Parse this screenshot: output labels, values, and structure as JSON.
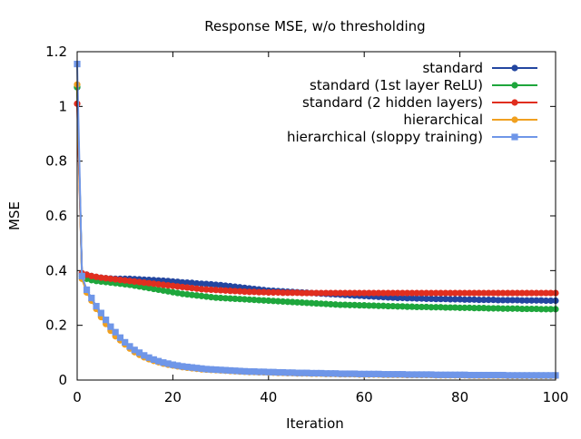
{
  "chart_data": {
    "type": "line",
    "title": "Response MSE, w/o thresholding",
    "xlabel": "Iteration",
    "ylabel": "MSE",
    "xlim": [
      0,
      100
    ],
    "ylim": [
      0,
      1.2
    ],
    "xticks": [
      "0",
      "20",
      "40",
      "60",
      "80",
      "100"
    ],
    "yticks": [
      "0",
      "0.2",
      "0.4",
      "0.6",
      "0.8",
      "1",
      "1.2"
    ],
    "legend_position": "top-right",
    "grid": false,
    "x": [
      0,
      1,
      2,
      3,
      4,
      5,
      6,
      7,
      8,
      9,
      10,
      11,
      12,
      13,
      14,
      15,
      16,
      17,
      18,
      19,
      20,
      21,
      22,
      23,
      24,
      25,
      26,
      27,
      28,
      29,
      30,
      31,
      32,
      33,
      34,
      35,
      36,
      37,
      38,
      39,
      40,
      41,
      42,
      43,
      44,
      45,
      46,
      47,
      48,
      49,
      50,
      51,
      52,
      53,
      54,
      55,
      56,
      57,
      58,
      59,
      60,
      61,
      62,
      63,
      64,
      65,
      66,
      67,
      68,
      69,
      70,
      71,
      72,
      73,
      74,
      75,
      76,
      77,
      78,
      79,
      80,
      81,
      82,
      83,
      84,
      85,
      86,
      87,
      88,
      89,
      90,
      91,
      92,
      93,
      94,
      95,
      96,
      97,
      98,
      99,
      100
    ],
    "series": [
      {
        "name": "standard",
        "color": "#2346a0",
        "marker": "circle",
        "values": [
          1.07,
          0.39,
          0.385,
          0.38,
          0.376,
          0.374,
          0.372,
          0.371,
          0.37,
          0.37,
          0.37,
          0.37,
          0.369,
          0.368,
          0.367,
          0.366,
          0.365,
          0.364,
          0.363,
          0.362,
          0.36,
          0.359,
          0.357,
          0.356,
          0.355,
          0.353,
          0.352,
          0.351,
          0.35,
          0.348,
          0.347,
          0.345,
          0.343,
          0.341,
          0.339,
          0.337,
          0.335,
          0.333,
          0.331,
          0.329,
          0.327,
          0.326,
          0.325,
          0.324,
          0.323,
          0.322,
          0.321,
          0.32,
          0.319,
          0.318,
          0.317,
          0.316,
          0.315,
          0.314,
          0.313,
          0.312,
          0.311,
          0.31,
          0.309,
          0.308,
          0.307,
          0.306,
          0.305,
          0.304,
          0.303,
          0.302,
          0.301,
          0.3,
          0.3,
          0.299,
          0.299,
          0.298,
          0.298,
          0.297,
          0.297,
          0.296,
          0.296,
          0.296,
          0.295,
          0.295,
          0.295,
          0.294,
          0.294,
          0.294,
          0.293,
          0.293,
          0.293,
          0.293,
          0.292,
          0.292,
          0.292,
          0.292,
          0.292,
          0.291,
          0.291,
          0.291,
          0.291,
          0.291,
          0.29,
          0.29,
          0.29
        ]
      },
      {
        "name": "standard (1st layer ReLU)",
        "color": "#1ea63c",
        "marker": "circle",
        "values": [
          1.07,
          0.38,
          0.37,
          0.365,
          0.362,
          0.36,
          0.358,
          0.356,
          0.354,
          0.352,
          0.35,
          0.348,
          0.345,
          0.342,
          0.339,
          0.336,
          0.333,
          0.33,
          0.327,
          0.324,
          0.321,
          0.318,
          0.315,
          0.313,
          0.311,
          0.309,
          0.307,
          0.305,
          0.303,
          0.301,
          0.3,
          0.299,
          0.298,
          0.297,
          0.296,
          0.295,
          0.294,
          0.293,
          0.292,
          0.291,
          0.29,
          0.289,
          0.288,
          0.287,
          0.286,
          0.285,
          0.284,
          0.283,
          0.282,
          0.281,
          0.28,
          0.279,
          0.278,
          0.277,
          0.276,
          0.275,
          0.275,
          0.274,
          0.274,
          0.273,
          0.273,
          0.272,
          0.272,
          0.271,
          0.271,
          0.27,
          0.27,
          0.269,
          0.269,
          0.268,
          0.268,
          0.267,
          0.267,
          0.267,
          0.266,
          0.266,
          0.266,
          0.265,
          0.265,
          0.265,
          0.264,
          0.264,
          0.264,
          0.263,
          0.263,
          0.263,
          0.262,
          0.262,
          0.262,
          0.261,
          0.261,
          0.261,
          0.261,
          0.26,
          0.26,
          0.26,
          0.26,
          0.259,
          0.259,
          0.259,
          0.259
        ]
      },
      {
        "name": "standard (2 hidden layers)",
        "color": "#e02e1f",
        "marker": "circle",
        "values": [
          1.01,
          0.39,
          0.385,
          0.38,
          0.377,
          0.374,
          0.372,
          0.37,
          0.368,
          0.366,
          0.364,
          0.362,
          0.36,
          0.358,
          0.356,
          0.354,
          0.352,
          0.35,
          0.348,
          0.346,
          0.344,
          0.342,
          0.34,
          0.338,
          0.336,
          0.334,
          0.332,
          0.331,
          0.33,
          0.329,
          0.328,
          0.327,
          0.326,
          0.325,
          0.324,
          0.323,
          0.322,
          0.322,
          0.321,
          0.321,
          0.32,
          0.32,
          0.32,
          0.319,
          0.319,
          0.319,
          0.319,
          0.318,
          0.318,
          0.318,
          0.318,
          0.318,
          0.318,
          0.318,
          0.318,
          0.318,
          0.318,
          0.318,
          0.318,
          0.318,
          0.318,
          0.318,
          0.318,
          0.318,
          0.318,
          0.318,
          0.318,
          0.318,
          0.318,
          0.318,
          0.318,
          0.318,
          0.318,
          0.318,
          0.318,
          0.318,
          0.318,
          0.318,
          0.318,
          0.318,
          0.318,
          0.318,
          0.318,
          0.318,
          0.318,
          0.318,
          0.318,
          0.318,
          0.318,
          0.318,
          0.318,
          0.318,
          0.318,
          0.318,
          0.318,
          0.318,
          0.318,
          0.318,
          0.318,
          0.318,
          0.318
        ]
      },
      {
        "name": "hierarchical",
        "color": "#f0a020",
        "marker": "circle",
        "values": [
          1.08,
          0.37,
          0.32,
          0.29,
          0.26,
          0.23,
          0.205,
          0.18,
          0.16,
          0.145,
          0.13,
          0.115,
          0.102,
          0.092,
          0.083,
          0.076,
          0.07,
          0.065,
          0.06,
          0.056,
          0.053,
          0.05,
          0.047,
          0.045,
          0.043,
          0.041,
          0.039,
          0.038,
          0.037,
          0.036,
          0.035,
          0.034,
          0.033,
          0.032,
          0.031,
          0.03,
          0.029,
          0.029,
          0.028,
          0.028,
          0.027,
          0.027,
          0.026,
          0.026,
          0.025,
          0.025,
          0.024,
          0.024,
          0.024,
          0.023,
          0.023,
          0.023,
          0.022,
          0.022,
          0.022,
          0.021,
          0.021,
          0.021,
          0.021,
          0.02,
          0.02,
          0.02,
          0.02,
          0.02,
          0.019,
          0.019,
          0.019,
          0.019,
          0.019,
          0.018,
          0.018,
          0.018,
          0.018,
          0.018,
          0.018,
          0.017,
          0.017,
          0.017,
          0.017,
          0.017,
          0.017,
          0.017,
          0.016,
          0.016,
          0.016,
          0.016,
          0.016,
          0.016,
          0.016,
          0.016,
          0.015,
          0.015,
          0.015,
          0.015,
          0.015,
          0.015,
          0.015,
          0.015,
          0.015,
          0.015,
          0.015
        ]
      },
      {
        "name": "hierarchical (sloppy training)",
        "color": "#6f96e8",
        "marker": "square",
        "values": [
          1.155,
          0.38,
          0.33,
          0.3,
          0.27,
          0.245,
          0.22,
          0.195,
          0.175,
          0.155,
          0.138,
          0.123,
          0.11,
          0.1,
          0.09,
          0.082,
          0.075,
          0.069,
          0.064,
          0.06,
          0.056,
          0.053,
          0.05,
          0.048,
          0.046,
          0.044,
          0.042,
          0.04,
          0.039,
          0.038,
          0.037,
          0.036,
          0.035,
          0.034,
          0.033,
          0.032,
          0.031,
          0.031,
          0.03,
          0.03,
          0.029,
          0.029,
          0.028,
          0.028,
          0.027,
          0.027,
          0.026,
          0.026,
          0.026,
          0.025,
          0.025,
          0.025,
          0.024,
          0.024,
          0.024,
          0.023,
          0.023,
          0.023,
          0.023,
          0.022,
          0.022,
          0.022,
          0.022,
          0.022,
          0.021,
          0.021,
          0.021,
          0.021,
          0.021,
          0.02,
          0.02,
          0.02,
          0.02,
          0.02,
          0.02,
          0.019,
          0.019,
          0.019,
          0.019,
          0.019,
          0.019,
          0.019,
          0.018,
          0.018,
          0.018,
          0.018,
          0.018,
          0.018,
          0.018,
          0.018,
          0.017,
          0.017,
          0.017,
          0.017,
          0.017,
          0.017,
          0.017,
          0.017,
          0.017,
          0.017,
          0.017
        ]
      }
    ]
  }
}
